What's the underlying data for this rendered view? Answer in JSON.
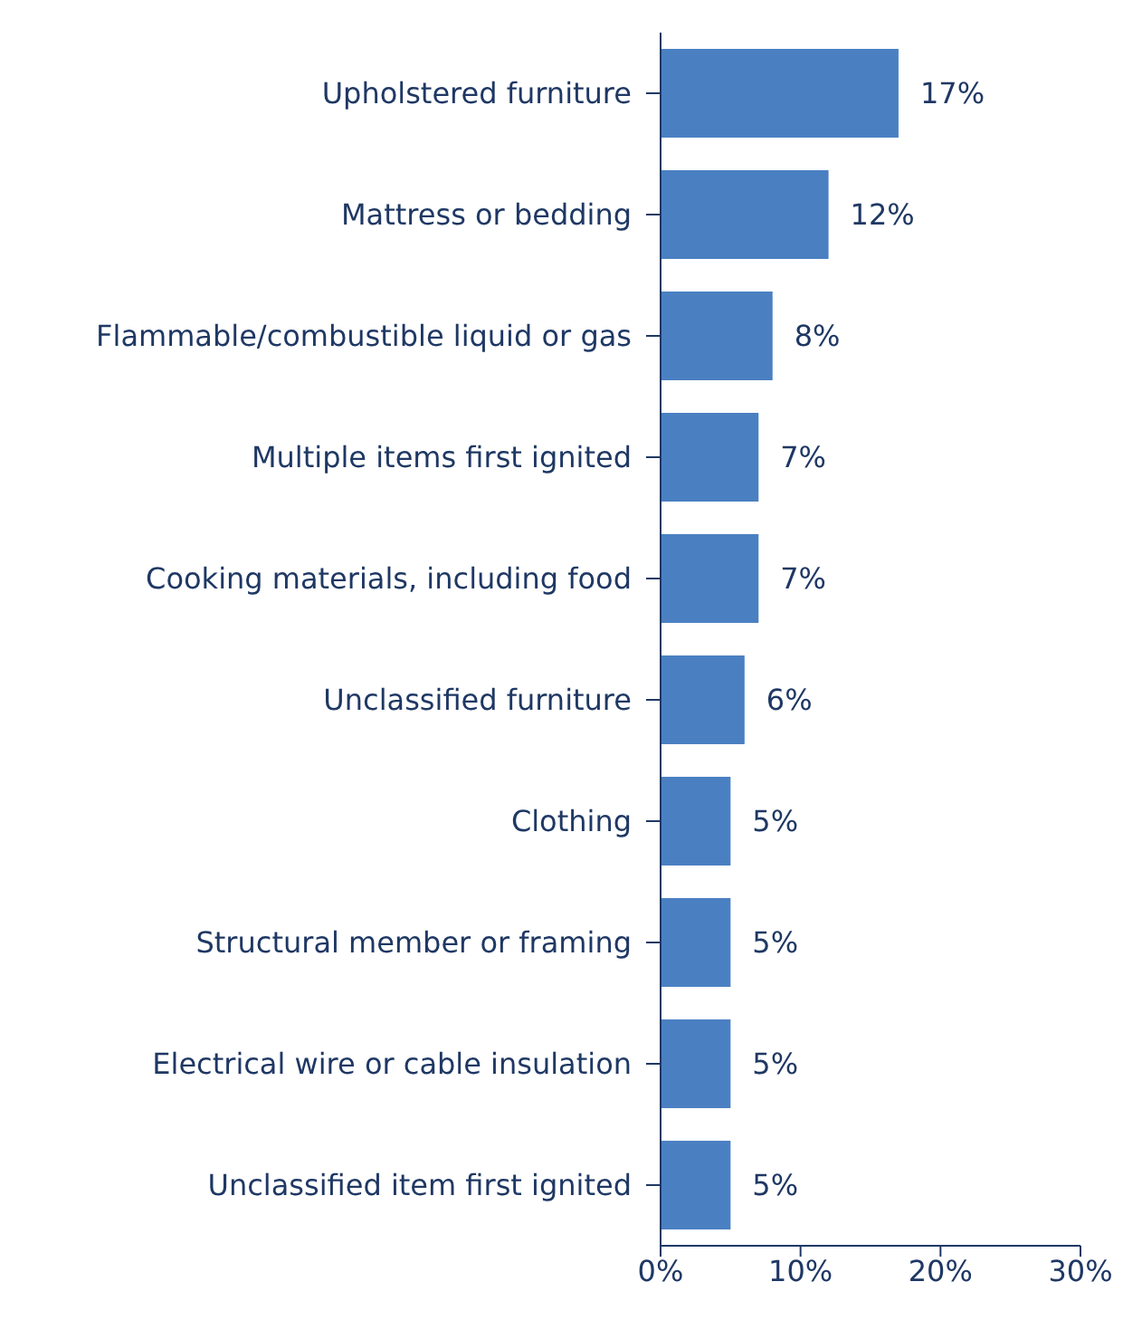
{
  "chart_data": {
    "type": "bar",
    "orientation": "horizontal",
    "categories": [
      "Upholstered furniture",
      "Mattress or bedding",
      "Flammable/combustible liquid or gas",
      "Multiple items first ignited",
      "Cooking materials, including food",
      "Unclassified furniture",
      "Clothing",
      "Structural member or framing",
      "Electrical wire or cable insulation",
      "Unclassified item first ignited"
    ],
    "values": [
      17,
      12,
      8,
      7,
      7,
      6,
      5,
      5,
      5,
      5
    ],
    "value_labels": [
      "17%",
      "12%",
      "8%",
      "7%",
      "7%",
      "6%",
      "5%",
      "5%",
      "5%",
      "5%"
    ],
    "color": "#4a80c2",
    "xlim": [
      0,
      30
    ],
    "xticks": [
      {
        "value": 0,
        "label": "0%"
      },
      {
        "value": 10,
        "label": "10%"
      },
      {
        "value": 20,
        "label": "20%"
      },
      {
        "value": 30,
        "label": "30%"
      }
    ],
    "grid": false
  }
}
